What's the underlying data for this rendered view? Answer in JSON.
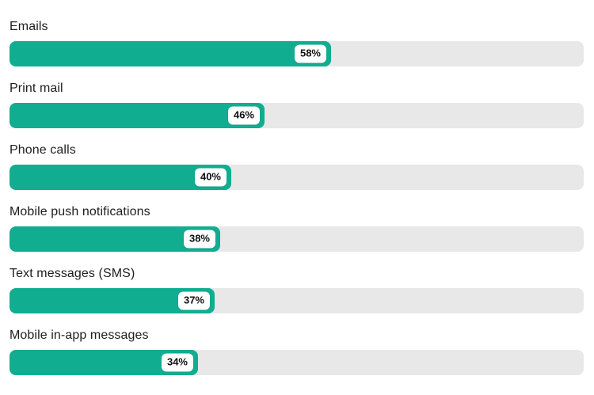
{
  "chart_data": {
    "type": "bar",
    "orientation": "horizontal",
    "title": "",
    "xlabel": "",
    "ylabel": "",
    "categories": [
      "Emails",
      "Print mail",
      "Phone calls",
      "Mobile push notifications",
      "Text messages (SMS)",
      "Mobile in-app messages"
    ],
    "values": [
      58,
      46,
      40,
      38,
      37,
      34
    ],
    "value_labels": [
      "58%",
      "46%",
      "40%",
      "38%",
      "37%",
      "34%"
    ],
    "xlim": [
      0,
      100
    ],
    "grid": false,
    "legend": null,
    "colors": {
      "bar_fill": "#11ad90",
      "bar_track": "#e9e8e8",
      "category_text": "#1e1e1e",
      "badge_bg": "#ffffff",
      "badge_text": "#111111"
    }
  }
}
